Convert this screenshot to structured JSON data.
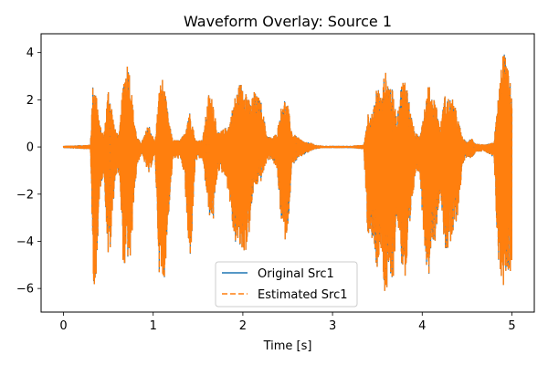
{
  "chart_data": {
    "type": "line",
    "title": "Waveform Overlay: Source 1",
    "xlabel": "Time [s]",
    "ylabel": "",
    "xlim": [
      -0.25,
      5.25
    ],
    "ylim": [
      -7.0,
      4.8
    ],
    "xticks": [
      0,
      1,
      2,
      3,
      4,
      5
    ],
    "xtick_labels": [
      "0",
      "1",
      "2",
      "3",
      "4",
      "5"
    ],
    "yticks": [
      -6,
      -4,
      -2,
      0,
      2,
      4
    ],
    "ytick_labels": [
      "−6",
      "−4",
      "−2",
      "0",
      "2",
      "4"
    ],
    "grid": false,
    "legend_placement": "bottom-center",
    "series": [
      {
        "name": "Original Src1",
        "color": "#1f77b4",
        "linestyle": "solid"
      },
      {
        "name": "Estimated Src1",
        "color": "#ff7f0e",
        "linestyle": "dashed"
      }
    ],
    "envelope": {
      "x": [
        0.0,
        0.3,
        0.33,
        0.37,
        0.4,
        0.45,
        0.5,
        0.53,
        0.57,
        0.62,
        0.67,
        0.72,
        0.75,
        0.78,
        0.82,
        0.87,
        0.95,
        1.02,
        1.07,
        1.1,
        1.13,
        1.18,
        1.22,
        1.3,
        1.35,
        1.4,
        1.43,
        1.47,
        1.55,
        1.62,
        1.67,
        1.72,
        1.8,
        1.85,
        1.9,
        1.96,
        2.0,
        2.04,
        2.08,
        2.12,
        2.2,
        2.27,
        2.32,
        2.38,
        2.45,
        2.5,
        2.55,
        2.62,
        2.7,
        2.75,
        2.8,
        2.9,
        3.0,
        3.2,
        3.35,
        3.4,
        3.45,
        3.5,
        3.55,
        3.58,
        3.62,
        3.67,
        3.72,
        3.77,
        3.82,
        3.87,
        3.92,
        3.97,
        4.02,
        4.07,
        4.1,
        4.15,
        4.2,
        4.25,
        4.3,
        4.35,
        4.4,
        4.45,
        4.5,
        4.55,
        4.6,
        4.7,
        4.8,
        4.85,
        4.9,
        4.95,
        5.0
      ],
      "upper": [
        0.05,
        0.1,
        2.9,
        2.3,
        1.0,
        0.5,
        2.6,
        2.0,
        0.8,
        0.5,
        3.0,
        3.8,
        2.8,
        1.5,
        0.4,
        0.2,
        1.0,
        0.2,
        2.6,
        3.0,
        2.4,
        1.0,
        0.3,
        0.3,
        0.6,
        1.6,
        1.2,
        0.3,
        0.3,
        2.3,
        2.0,
        0.6,
        0.8,
        1.0,
        2.0,
        2.7,
        2.8,
        2.5,
        1.8,
        2.4,
        2.0,
        0.5,
        0.4,
        0.6,
        2.2,
        1.8,
        0.6,
        0.4,
        0.2,
        0.2,
        0.1,
        0.05,
        0.05,
        0.05,
        0.1,
        1.6,
        1.4,
        2.8,
        2.0,
        3.3,
        2.9,
        2.4,
        1.2,
        2.8,
        3.0,
        1.5,
        0.6,
        0.5,
        1.6,
        2.7,
        2.3,
        2.0,
        0.8,
        2.2,
        2.1,
        2.0,
        1.2,
        0.4,
        0.2,
        0.4,
        0.15,
        0.1,
        0.2,
        2.2,
        4.2,
        3.5,
        2.3
      ],
      "lower": [
        -0.05,
        -0.1,
        -5.6,
        -6.4,
        -2.0,
        -1.0,
        -5.0,
        -4.2,
        -1.5,
        -1.0,
        -5.4,
        -4.8,
        -5.2,
        -2.5,
        -0.8,
        -0.3,
        -1.2,
        -0.3,
        -5.6,
        -6.3,
        -5.4,
        -2.5,
        -0.5,
        -0.5,
        -1.2,
        -5.2,
        -4.0,
        -0.6,
        -0.5,
        -2.9,
        -3.2,
        -1.0,
        -1.2,
        -2.2,
        -4.0,
        -4.4,
        -4.6,
        -4.4,
        -3.5,
        -1.8,
        -1.5,
        -0.6,
        -0.5,
        -1.0,
        -4.2,
        -3.6,
        -0.8,
        -0.5,
        -0.3,
        -0.2,
        -0.1,
        -0.05,
        -0.05,
        -0.05,
        -0.1,
        -4.6,
        -3.8,
        -5.5,
        -4.5,
        -6.5,
        -6.2,
        -6.0,
        -3.0,
        -5.0,
        -6.0,
        -3.5,
        -1.2,
        -1.0,
        -4.0,
        -5.8,
        -4.0,
        -4.0,
        -1.8,
        -4.3,
        -4.6,
        -3.8,
        -2.8,
        -0.8,
        -0.4,
        -0.5,
        -0.2,
        -0.2,
        -0.5,
        -5.2,
        -6.0,
        -5.2,
        -5.6
      ]
    }
  }
}
